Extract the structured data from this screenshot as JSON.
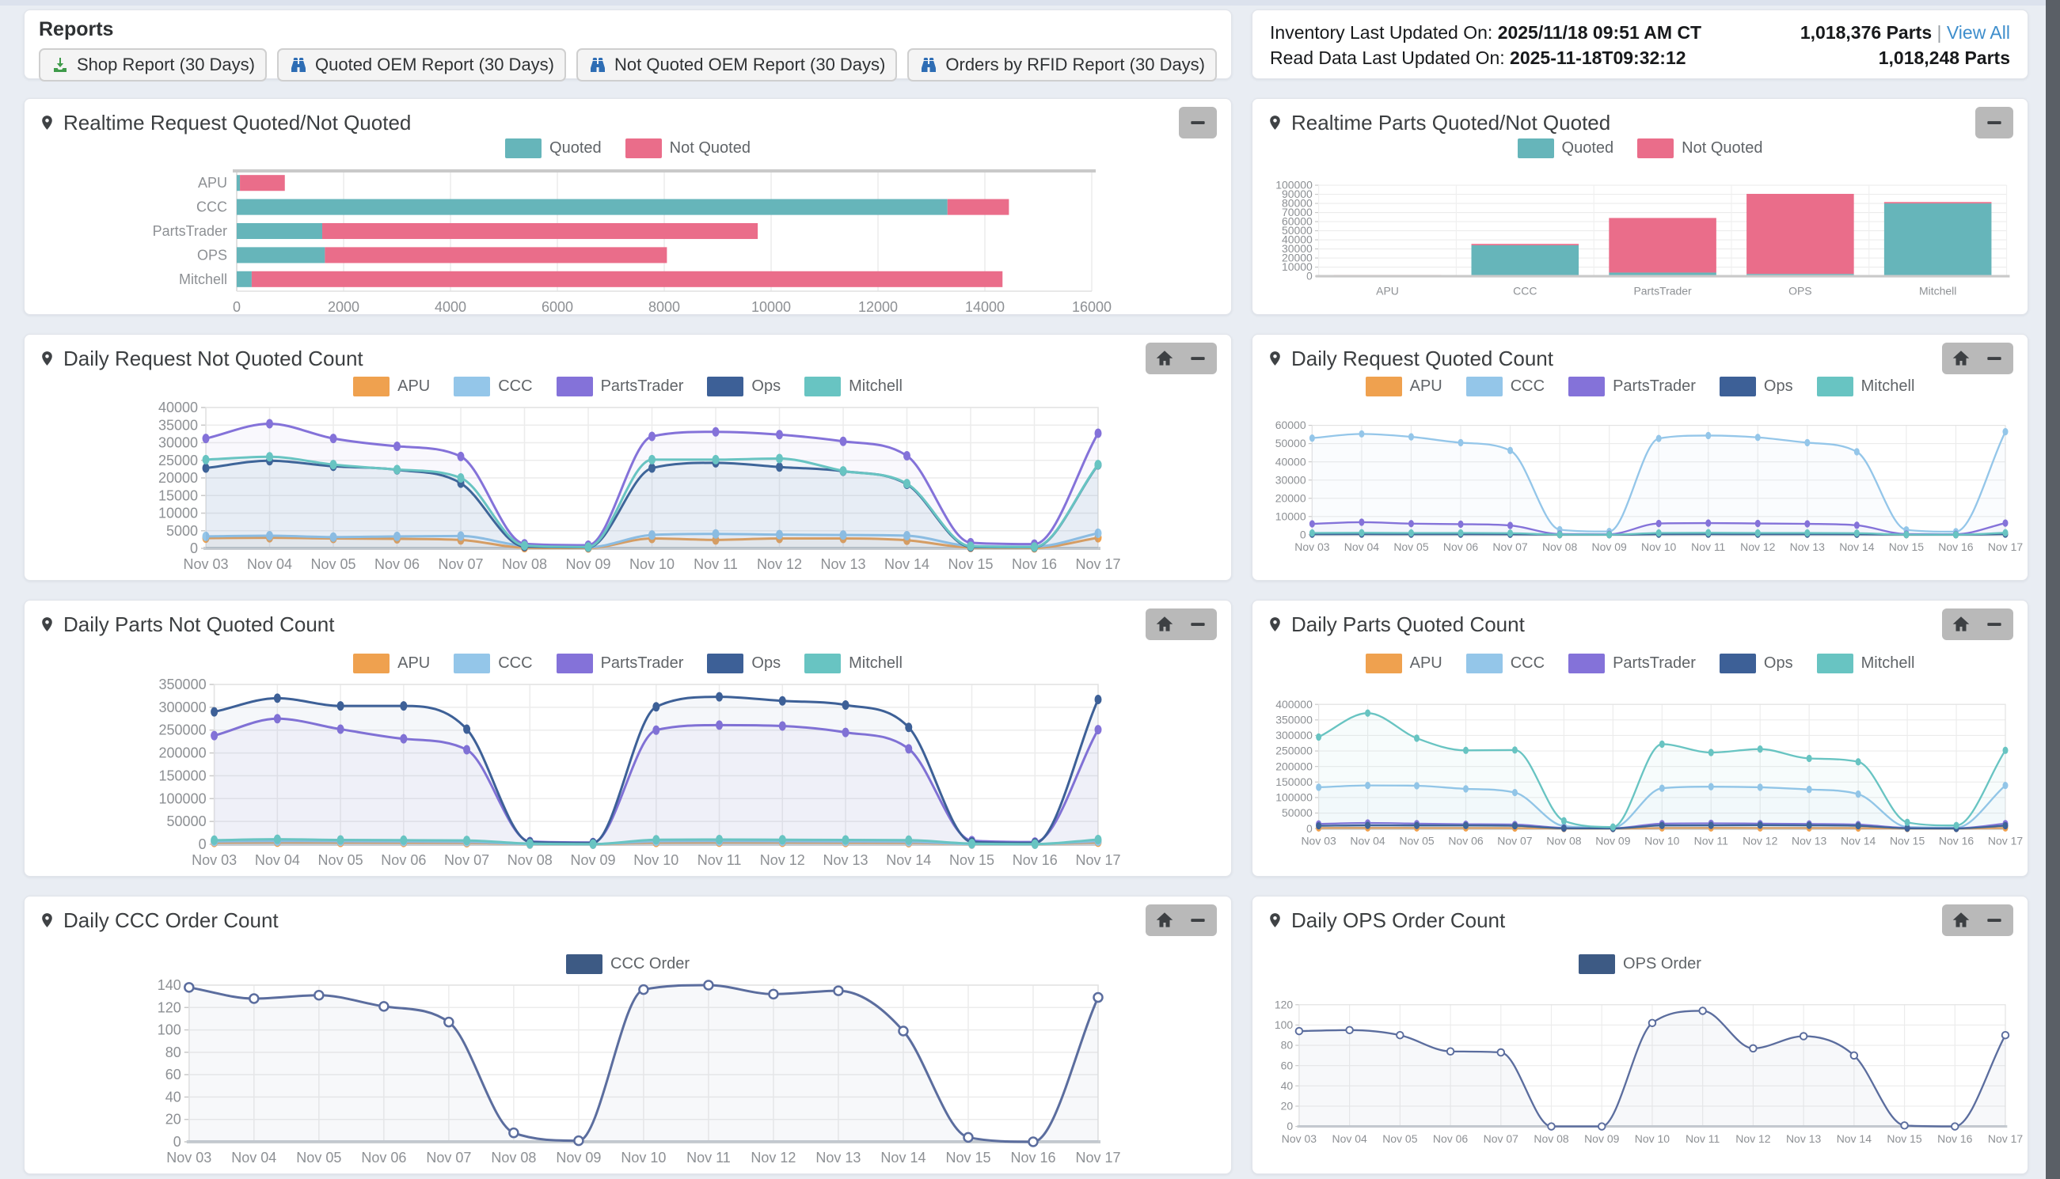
{
  "reports": {
    "title": "Reports",
    "buttons": [
      {
        "label": "Shop Report (30 Days)",
        "icon": "download-icon"
      },
      {
        "label": "Quoted OEM Report (30 Days)",
        "icon": "binoculars-icon"
      },
      {
        "label": "Not Quoted OEM Report (30 Days)",
        "icon": "binoculars-icon"
      },
      {
        "label": "Orders by RFID Report (30 Days)",
        "icon": "binoculars-icon"
      }
    ]
  },
  "inventory": {
    "inventory_label": "Inventory Last Updated On:",
    "inventory_value": "2025/11/18 09:51 AM CT",
    "inventory_parts": "1,018,376 Parts",
    "separator": "|",
    "view_all": "View All",
    "read_label": "Read Data Last Updated On:",
    "read_value": "2025-11-18T09:32:12",
    "read_parts": "1,018,248 Parts"
  },
  "colors": {
    "quoted": "#66b5ba",
    "not_quoted": "#ea6d8a",
    "apu": "#efa14f",
    "ccc": "#94c6e9",
    "partstrader": "#8472d9",
    "ops": "#3d6097",
    "mitchell": "#68c4c2",
    "order_line": "#5b6d9e",
    "order_swatch": "#3d5a84",
    "link": "#3e8ecc"
  },
  "dates": [
    "Nov 03",
    "Nov 04",
    "Nov 05",
    "Nov 06",
    "Nov 07",
    "Nov 08",
    "Nov 09",
    "Nov 10",
    "Nov 11",
    "Nov 12",
    "Nov 13",
    "Nov 14",
    "Nov 15",
    "Nov 16",
    "Nov 17"
  ],
  "chart_data": [
    {
      "type": "hbar",
      "title": "Realtime Request Quoted/Not Quoted",
      "categories": [
        "APU",
        "CCC",
        "PartsTrader",
        "OPS",
        "Mitchell"
      ],
      "series": [
        {
          "name": "Quoted",
          "color": "#66b5ba",
          "values": [
            60,
            13300,
            1600,
            1650,
            280
          ]
        },
        {
          "name": "Not Quoted",
          "color": "#ea6d8a",
          "values": [
            840,
            1150,
            8150,
            6400,
            14050
          ]
        }
      ],
      "xmax": 16000,
      "xtick": 2000,
      "tools": [
        "collapse"
      ]
    },
    {
      "type": "vbar",
      "title": "Realtime Parts Quoted/Not Quoted",
      "categories": [
        "APU",
        "CCC",
        "PartsTrader",
        "OPS",
        "Mitchell"
      ],
      "series": [
        {
          "name": "Quoted",
          "color": "#66b5ba",
          "values": [
            700,
            34000,
            4000,
            2500,
            80000
          ]
        },
        {
          "name": "Not Quoted",
          "color": "#ea6d8a",
          "values": [
            700,
            1500,
            60000,
            88000,
            1500
          ]
        }
      ],
      "ymax": 100000,
      "ytick": 10000,
      "tools": [
        "collapse"
      ]
    },
    {
      "type": "line",
      "title": "Daily Request Not Quoted Count",
      "ymax": 40000,
      "ytick": 5000,
      "tools": [
        "home",
        "collapse"
      ],
      "series": [
        {
          "name": "APU",
          "color": "#efa14f",
          "values": [
            2900,
            3000,
            2800,
            2700,
            2400,
            200,
            100,
            2800,
            2400,
            2800,
            2800,
            2300,
            250,
            150,
            3000
          ]
        },
        {
          "name": "CCC",
          "color": "#94c6e9",
          "values": [
            3400,
            3600,
            3200,
            3400,
            3500,
            700,
            300,
            3800,
            4100,
            3900,
            3800,
            3600,
            700,
            500,
            4300
          ]
        },
        {
          "name": "PartsTrader",
          "color": "#8472d9",
          "values": [
            31200,
            35400,
            31200,
            29000,
            26100,
            1300,
            900,
            31800,
            33100,
            32300,
            30400,
            26300,
            1600,
            1200,
            32700
          ]
        },
        {
          "name": "Ops",
          "color": "#3d6097",
          "values": [
            22800,
            24900,
            23300,
            22300,
            18500,
            500,
            300,
            22800,
            24300,
            23100,
            21900,
            18200,
            400,
            300,
            23700
          ]
        },
        {
          "name": "Mitchell",
          "color": "#68c4c2",
          "values": [
            25200,
            26000,
            23800,
            22400,
            20000,
            800,
            400,
            25200,
            25200,
            25500,
            22000,
            18400,
            600,
            400,
            23800
          ]
        }
      ]
    },
    {
      "type": "line",
      "title": "Daily Request Quoted Count",
      "ymax": 60000,
      "ytick": 10000,
      "tools": [
        "home",
        "collapse"
      ],
      "series": [
        {
          "name": "APU",
          "color": "#efa14f",
          "values": [
            500,
            600,
            550,
            500,
            450,
            50,
            30,
            550,
            600,
            550,
            500,
            450,
            50,
            30,
            600
          ]
        },
        {
          "name": "CCC",
          "color": "#94c6e9",
          "values": [
            53000,
            55300,
            53700,
            50500,
            46200,
            2800,
            1800,
            52800,
            54400,
            53400,
            50500,
            45500,
            2700,
            1700,
            56500
          ]
        },
        {
          "name": "PartsTrader",
          "color": "#8472d9",
          "values": [
            6000,
            6900,
            6100,
            5800,
            5100,
            400,
            300,
            6200,
            6400,
            6200,
            6000,
            5200,
            400,
            300,
            6400
          ]
        },
        {
          "name": "Ops",
          "color": "#3d6097",
          "values": [
            300,
            350,
            300,
            300,
            250,
            30,
            20,
            300,
            350,
            300,
            300,
            250,
            30,
            20,
            350
          ]
        },
        {
          "name": "Mitchell",
          "color": "#68c4c2",
          "values": [
            1000,
            1100,
            1000,
            1000,
            900,
            100,
            50,
            1000,
            1100,
            1000,
            1000,
            900,
            100,
            50,
            1100
          ]
        }
      ]
    },
    {
      "type": "line",
      "title": "Daily Parts Not Quoted Count",
      "ymax": 350000,
      "ytick": 50000,
      "tools": [
        "home",
        "collapse"
      ],
      "series": [
        {
          "name": "APU",
          "color": "#efa14f",
          "values": [
            4000,
            4500,
            4200,
            4000,
            3500,
            300,
            200,
            4200,
            4500,
            4300,
            4000,
            3500,
            300,
            200,
            4500
          ]
        },
        {
          "name": "CCC",
          "color": "#94c6e9",
          "values": [
            6000,
            7000,
            6500,
            6000,
            5500,
            500,
            300,
            6500,
            7000,
            6500,
            6000,
            5500,
            500,
            300,
            7000
          ]
        },
        {
          "name": "PartsTrader",
          "color": "#8472d9",
          "values": [
            238000,
            275000,
            252000,
            231000,
            207000,
            6000,
            4000,
            250000,
            261000,
            259000,
            245000,
            209000,
            8000,
            5000,
            251000
          ]
        },
        {
          "name": "Ops",
          "color": "#3d6097",
          "values": [
            290000,
            320000,
            303000,
            303000,
            252000,
            5000,
            3000,
            301000,
            323000,
            314000,
            305000,
            256000,
            5000,
            3000,
            317000
          ]
        },
        {
          "name": "Mitchell",
          "color": "#68c4c2",
          "values": [
            9000,
            11000,
            9500,
            9000,
            8500,
            1500,
            500,
            10000,
            10500,
            10000,
            9500,
            9000,
            1500,
            500,
            10500
          ]
        }
      ]
    },
    {
      "type": "line",
      "title": "Daily Parts Quoted Count",
      "ymax": 400000,
      "ytick": 50000,
      "tools": [
        "home",
        "collapse"
      ],
      "series": [
        {
          "name": "APU",
          "color": "#efa14f",
          "values": [
            2000,
            2200,
            2000,
            2000,
            1800,
            200,
            100,
            2000,
            2200,
            2000,
            2000,
            1800,
            200,
            100,
            2200
          ]
        },
        {
          "name": "CCC",
          "color": "#94c6e9",
          "values": [
            133000,
            139000,
            138000,
            128000,
            116000,
            8000,
            3000,
            130000,
            135000,
            133000,
            126000,
            111000,
            5000,
            3000,
            139000
          ]
        },
        {
          "name": "PartsTrader",
          "color": "#8472d9",
          "values": [
            15000,
            18000,
            16000,
            14000,
            13000,
            2000,
            1000,
            16000,
            17000,
            16000,
            15000,
            13000,
            2000,
            1000,
            16000
          ]
        },
        {
          "name": "Ops",
          "color": "#3d6097",
          "values": [
            9000,
            10500,
            10000,
            10000,
            9000,
            1000,
            500,
            10000,
            10500,
            11000,
            10500,
            9000,
            1000,
            500,
            9500
          ]
        },
        {
          "name": "Mitchell",
          "color": "#68c4c2",
          "values": [
            295000,
            372000,
            291000,
            252000,
            253000,
            25000,
            5000,
            272000,
            245000,
            256000,
            226000,
            215000,
            20000,
            10000,
            252000
          ]
        }
      ]
    },
    {
      "type": "line",
      "title": "Daily CCC Order Count",
      "ymax": 140,
      "ytick": 20,
      "markers": "open",
      "tools": [
        "home",
        "collapse"
      ],
      "series": [
        {
          "name": "CCC Order",
          "color": "#5b6d9e",
          "swatch": "#3d5a84",
          "values": [
            138,
            128,
            131,
            121,
            107,
            8,
            1,
            136,
            140,
            132,
            135,
            99,
            4,
            0,
            129
          ]
        }
      ]
    },
    {
      "type": "line",
      "title": "Daily OPS Order Count",
      "ymax": 120,
      "ytick": 20,
      "markers": "open",
      "tools": [
        "home",
        "collapse"
      ],
      "series": [
        {
          "name": "OPS Order",
          "color": "#5b6d9e",
          "swatch": "#3d5a84",
          "values": [
            94,
            95,
            90,
            74,
            73,
            0,
            0,
            102,
            114,
            77,
            89,
            70,
            1,
            0,
            90
          ]
        }
      ]
    }
  ]
}
